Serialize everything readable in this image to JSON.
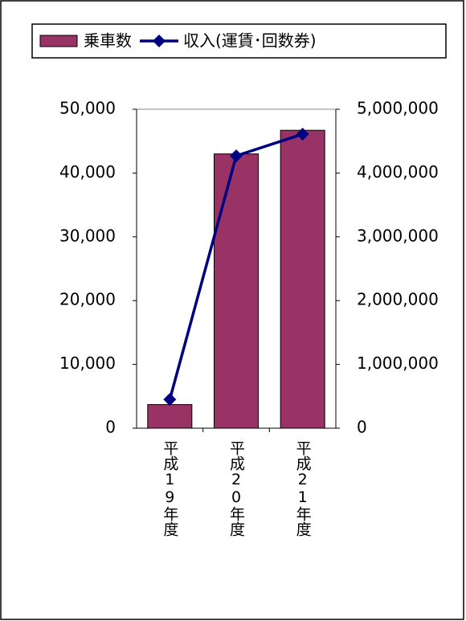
{
  "chart_data": {
    "type": "bar",
    "categories": [
      "平成19年度",
      "平成20年度",
      "平成21年度"
    ],
    "series": [
      {
        "name": "乗車数",
        "color": "#993366",
        "values": [
          3700,
          43000,
          46700
        ]
      },
      {
        "name": "収入(運賃･回数券)",
        "color": "#000080",
        "type": "line",
        "axis": "y2",
        "values": [
          450000,
          4270000,
          4610000
        ]
      }
    ],
    "ylim": [
      0,
      50000
    ],
    "yticks": [
      0,
      {
        "value": 10000,
        "label": "10,000"
      },
      {
        "value": 20000,
        "label": "20,000"
      },
      {
        "value": 30000,
        "label": "30,000"
      },
      {
        "value": 40000,
        "label": "40,000"
      },
      {
        "value": 50000,
        "label": "50,000"
      }
    ],
    "y2lim": [
      0,
      5000000
    ],
    "y2ticks": [
      0,
      {
        "value": 1000000,
        "label": "1,000,000"
      },
      {
        "value": 2000000,
        "label": "2,000,000"
      },
      {
        "value": 3000000,
        "label": "3,000,000"
      },
      {
        "value": 4000000,
        "label": "4,000,000"
      },
      {
        "value": 5000000,
        "label": "5,000,000"
      }
    ],
    "legend": "top"
  }
}
